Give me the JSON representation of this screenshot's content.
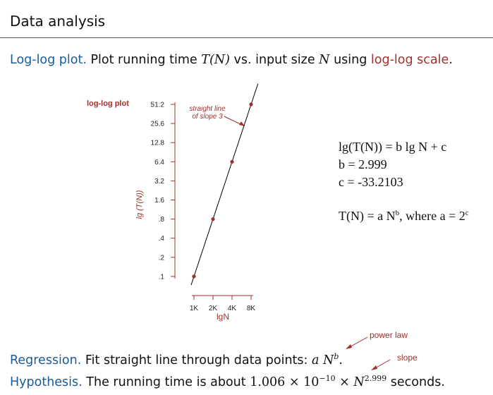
{
  "slide": {
    "title": "Data analysis"
  },
  "intro": {
    "term": "Log-log plot.",
    "text_before": "Plot running time",
    "tn": "T(N)",
    "text_mid": "vs. input size",
    "n": "N",
    "text_using": "using",
    "scale_term": "log-log scale",
    "end": "."
  },
  "plot": {
    "legend_label": "log-log plot",
    "y_axis_label": "lg (T(N))",
    "x_axis_label": "lgN",
    "annotation": [
      "straight line",
      "of slope 3"
    ],
    "y_ticks": [
      "51.2",
      "25.6",
      "12.8",
      "6.4",
      "3.2",
      "1.6",
      ".8",
      ".4",
      ".2",
      ".1"
    ],
    "x_ticks": [
      "1K",
      "2K",
      "4K",
      "8K"
    ],
    "colors": {
      "accent": "#a0302b",
      "line": "#000000"
    }
  },
  "chart_data": {
    "type": "scatter",
    "title": "log-log plot",
    "xlabel": "lgN",
    "ylabel": "lg (T(N))",
    "x_scale": "log2",
    "y_scale": "log2",
    "x": [
      1000,
      2000,
      4000,
      8000
    ],
    "y": [
      0.1,
      0.8,
      6.4,
      51.2
    ],
    "fit": {
      "slope": 2.999,
      "intercept": -33.2103
    },
    "grid": false
  },
  "equations": {
    "line1": "lg(T(N)) = b lg N + c",
    "line2": "b = 2.999",
    "line3": "c = -33.2103",
    "line4_prefix": "T(N) = a N",
    "line4_exp": "b",
    "line4_suffix": ", where a = 2",
    "line4_exp2": "c"
  },
  "regression": {
    "term": "Regression.",
    "text": "Fit straight line through data points:",
    "formula_base": "a N",
    "formula_exp": "b",
    "end": "."
  },
  "hypothesis": {
    "term": "Hypothesis.",
    "text": "The running time is about",
    "coef": "1.006 × 10",
    "coef_exp": "−10",
    "times": "× N",
    "n_exp": "2.999",
    "end": "seconds."
  },
  "annotations": {
    "power_law": "power law",
    "slope": "slope"
  }
}
